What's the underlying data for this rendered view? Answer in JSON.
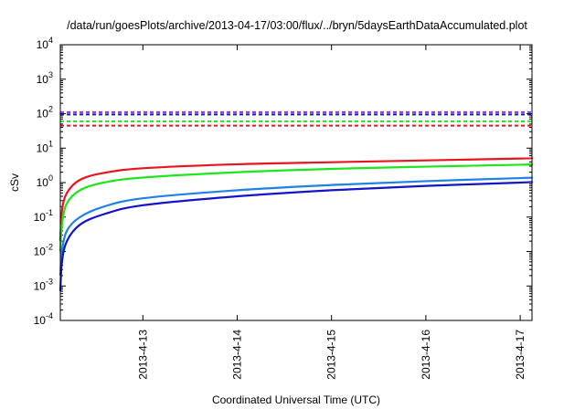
{
  "chart_data": {
    "type": "line",
    "title": "/data/run/goesPlots/archive/2013-04-17/03:00/flux/../bryn/5daysEarthDataAccumulated.plot",
    "xlabel": "Coordinated Universal Time (UTC)",
    "ylabel": "cSv",
    "y_scale": "log",
    "ylim": [
      0.0001,
      10000
    ],
    "xlim": [
      "2013-04-12T03:00",
      "2013-04-17T03:00"
    ],
    "grid": false,
    "legend": "none",
    "x_tick_labels": [
      "2013-4-13",
      "2013-4-14",
      "2013-4-15",
      "2013-4-16",
      "2013-4-17"
    ],
    "x_ticks": [
      "2013-04-13T00:00",
      "2013-04-14T00:00",
      "2013-04-15T00:00",
      "2013-04-16T00:00",
      "2013-04-17T00:00"
    ],
    "y_tick_labels": [
      {
        "base": "10",
        "exp": "-4"
      },
      {
        "base": "10",
        "exp": "-3"
      },
      {
        "base": "10",
        "exp": "-2"
      },
      {
        "base": "10",
        "exp": "-1"
      },
      {
        "base": "10",
        "exp": "0"
      },
      {
        "base": "10",
        "exp": "1"
      },
      {
        "base": "10",
        "exp": "2"
      },
      {
        "base": "10",
        "exp": "3"
      },
      {
        "base": "10",
        "exp": "4"
      }
    ],
    "y_ticks": [
      0.0001,
      0.001,
      0.01,
      0.1,
      1,
      10,
      100,
      1000,
      10000
    ],
    "series": [
      {
        "color": "#e8141e",
        "x": [
          "2013-04-12T03:00",
          "2013-04-12T03:25",
          "2013-04-12T04:40",
          "2013-04-12T08:00",
          "2013-04-12T14:00",
          "2013-04-13T00:00",
          "2013-04-14T00:00",
          "2013-04-15T00:00",
          "2013-04-16T00:00",
          "2013-04-17T00:00",
          "2013-04-17T03:00"
        ],
        "values": [
          0.02,
          0.15,
          0.5,
          1.2,
          1.9,
          2.6,
          3.4,
          3.9,
          4.4,
          5.0,
          5.1
        ]
      },
      {
        "color": "#1ee61e",
        "x": [
          "2013-04-12T03:00",
          "2013-04-12T03:25",
          "2013-04-12T04:40",
          "2013-04-12T08:00",
          "2013-04-12T14:00",
          "2013-04-13T00:00",
          "2013-04-14T00:00",
          "2013-04-15T00:00",
          "2013-04-16T00:00",
          "2013-04-17T00:00",
          "2013-04-17T03:00"
        ],
        "values": [
          0.01,
          0.06,
          0.25,
          0.6,
          1.0,
          1.4,
          2.0,
          2.5,
          2.9,
          3.3,
          3.4
        ]
      },
      {
        "color": "#1e82e6",
        "x": [
          "2013-04-12T03:00",
          "2013-04-12T03:25",
          "2013-04-12T04:40",
          "2013-04-12T08:00",
          "2013-04-12T14:00",
          "2013-04-13T00:00",
          "2013-04-14T00:00",
          "2013-04-15T00:00",
          "2013-04-16T00:00",
          "2013-04-17T00:00",
          "2013-04-17T03:00"
        ],
        "values": [
          0.002,
          0.01,
          0.04,
          0.1,
          0.2,
          0.35,
          0.6,
          0.85,
          1.1,
          1.35,
          1.4
        ]
      },
      {
        "color": "#1414c8",
        "x": [
          "2013-04-12T03:00",
          "2013-04-12T03:25",
          "2013-04-12T04:40",
          "2013-04-12T08:00",
          "2013-04-12T14:00",
          "2013-04-13T00:00",
          "2013-04-14T00:00",
          "2013-04-15T00:00",
          "2013-04-16T00:00",
          "2013-04-17T00:00",
          "2013-04-17T03:00"
        ],
        "values": [
          0.0007,
          0.005,
          0.02,
          0.06,
          0.12,
          0.22,
          0.4,
          0.6,
          0.8,
          1.0,
          1.05
        ]
      }
    ],
    "threshold_lines": [
      {
        "value": 110,
        "color": "#9632c8",
        "style": "dashed"
      },
      {
        "value": 95,
        "color": "#1414c8",
        "style": "dashed"
      },
      {
        "value": 60,
        "color": "#1ee61e",
        "style": "dashed"
      },
      {
        "value": 45,
        "color": "#e8141e",
        "style": "dashed"
      }
    ]
  }
}
